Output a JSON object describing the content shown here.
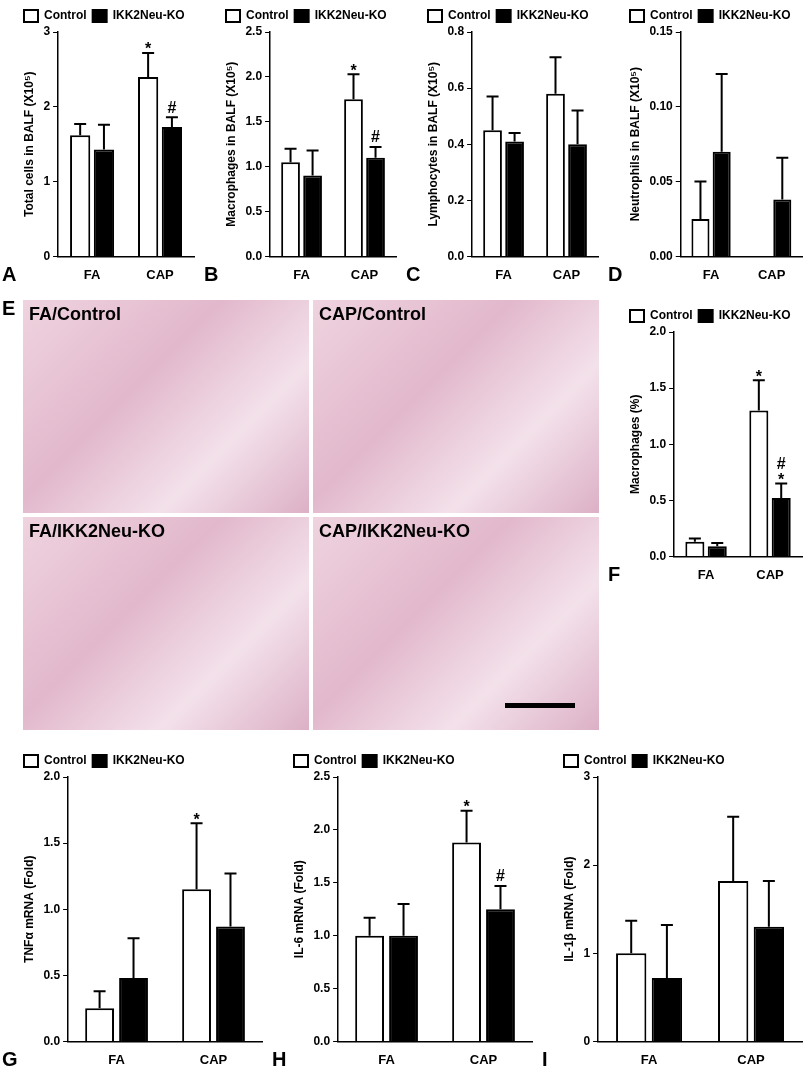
{
  "chart_data": [
    {
      "panel_label": "A",
      "type": "bar",
      "y_label": "Total cells in BALF (X10⁵)",
      "categories": [
        "FA",
        "CAP"
      ],
      "ylim": [
        0,
        3
      ],
      "yticks": [
        0,
        1,
        2,
        3
      ],
      "grid": false,
      "legend": "top-left",
      "series": [
        {
          "name": "Control",
          "color": "#ffffff",
          "values": [
            1.62,
            2.4
          ],
          "errors": [
            0.15,
            0.32
          ],
          "annotations": [
            null,
            [
              "*"
            ]
          ]
        },
        {
          "name": "IKK2Neu-KO",
          "color": "#000000",
          "values": [
            1.43,
            1.73
          ],
          "errors": [
            0.33,
            0.13
          ],
          "annotations": [
            null,
            [
              "#"
            ]
          ]
        }
      ]
    },
    {
      "panel_label": "B",
      "type": "bar",
      "y_label": "Macrophages in BALF (X10⁵)",
      "categories": [
        "FA",
        "CAP"
      ],
      "ylim": [
        0,
        2.5
      ],
      "yticks": [
        {
          "value": 0,
          "label": "0.0"
        },
        0.5,
        {
          "value": 1,
          "label": "1.0"
        },
        1.5,
        {
          "value": 2,
          "label": "2.0"
        },
        2.5
      ],
      "grid": false,
      "legend": "top-left",
      "series": [
        {
          "name": "Control",
          "color": "#ffffff",
          "values": [
            1.05,
            1.75
          ],
          "errors": [
            0.15,
            0.28
          ],
          "annotations": [
            null,
            [
              "*"
            ]
          ]
        },
        {
          "name": "IKK2Neu-KO",
          "color": "#000000",
          "values": [
            0.9,
            1.1
          ],
          "errors": [
            0.28,
            0.12
          ],
          "annotations": [
            null,
            [
              "#"
            ]
          ]
        }
      ]
    },
    {
      "panel_label": "C",
      "type": "bar",
      "y_label": "Lymphocytes in BALF (X10⁵)",
      "categories": [
        "FA",
        "CAP"
      ],
      "ylim": [
        0,
        0.8
      ],
      "yticks": [
        {
          "value": 0,
          "label": "0.0"
        },
        0.2,
        0.4,
        0.6,
        0.8
      ],
      "grid": false,
      "legend": "top-left",
      "series": [
        {
          "name": "Control",
          "color": "#ffffff",
          "values": [
            0.45,
            0.58
          ],
          "errors": [
            0.12,
            0.13
          ],
          "annotations": [
            null,
            null
          ]
        },
        {
          "name": "IKK2Neu-KO",
          "color": "#000000",
          "values": [
            0.41,
            0.4
          ],
          "errors": [
            0.03,
            0.12
          ],
          "annotations": [
            null,
            null
          ]
        }
      ]
    },
    {
      "panel_label": "D",
      "type": "bar",
      "y_label": "Neutrophils in BALF (X10⁵)",
      "categories": [
        "FA",
        "CAP"
      ],
      "ylim": [
        0,
        0.15
      ],
      "yticks": [
        {
          "value": 0,
          "label": "0.00"
        },
        {
          "value": 0.05,
          "label": "0.05"
        },
        {
          "value": 0.1,
          "label": "0.10"
        },
        {
          "value": 0.15,
          "label": "0.15"
        }
      ],
      "grid": false,
      "legend": "top-left",
      "series": [
        {
          "name": "Control",
          "color": "#ffffff",
          "values": [
            0.025,
            0
          ],
          "errors": [
            0.025,
            null
          ],
          "annotations": [
            null,
            null
          ]
        },
        {
          "name": "IKK2Neu-KO",
          "color": "#000000",
          "values": [
            0.07,
            0.038
          ],
          "errors": [
            0.052,
            0.028
          ],
          "annotations": [
            null,
            null
          ]
        }
      ]
    },
    {
      "panel_label": "F",
      "type": "bar",
      "y_label": "Macrophages (%)",
      "categories": [
        "FA",
        "CAP"
      ],
      "ylim": [
        0,
        2
      ],
      "yticks": [
        {
          "value": 0,
          "label": "0.0"
        },
        0.5,
        {
          "value": 1,
          "label": "1.0"
        },
        1.5,
        {
          "value": 2,
          "label": "2.0"
        }
      ],
      "grid": false,
      "legend": "top-left",
      "series": [
        {
          "name": "Control",
          "color": "#ffffff",
          "values": [
            0.13,
            1.3
          ],
          "errors": [
            0.03,
            0.27
          ],
          "annotations": [
            null,
            [
              "*"
            ]
          ]
        },
        {
          "name": "IKK2Neu-KO",
          "color": "#000000",
          "values": [
            0.09,
            0.52
          ],
          "errors": [
            0.03,
            0.13
          ],
          "annotations": [
            null,
            [
              "#",
              "*"
            ]
          ]
        }
      ]
    },
    {
      "panel_label": "G",
      "type": "bar",
      "y_label": "TNFα mRNA (Fold)",
      "categories": [
        "FA",
        "CAP"
      ],
      "ylim": [
        0,
        2
      ],
      "yticks": [
        {
          "value": 0,
          "label": "0.0"
        },
        0.5,
        {
          "value": 1,
          "label": "1.0"
        },
        1.5,
        {
          "value": 2,
          "label": "2.0"
        }
      ],
      "grid": false,
      "legend": "top-left",
      "series": [
        {
          "name": "Control",
          "color": "#ffffff",
          "values": [
            0.25,
            1.15
          ],
          "errors": [
            0.13,
            0.5
          ],
          "annotations": [
            null,
            [
              "*"
            ]
          ]
        },
        {
          "name": "IKK2Neu-KO",
          "color": "#000000",
          "values": [
            0.48,
            0.87
          ],
          "errors": [
            0.3,
            0.4
          ],
          "annotations": [
            null,
            null
          ]
        }
      ]
    },
    {
      "panel_label": "H",
      "type": "bar",
      "y_label": "IL-6 mRNA (Fold)",
      "categories": [
        "FA",
        "CAP"
      ],
      "ylim": [
        0,
        2.5
      ],
      "yticks": [
        {
          "value": 0,
          "label": "0.0"
        },
        0.5,
        {
          "value": 1,
          "label": "1.0"
        },
        1.5,
        {
          "value": 2,
          "label": "2.0"
        },
        2.5
      ],
      "grid": false,
      "legend": "top-left",
      "series": [
        {
          "name": "Control",
          "color": "#ffffff",
          "values": [
            1.0,
            1.88
          ],
          "errors": [
            0.17,
            0.3
          ],
          "annotations": [
            null,
            [
              "*"
            ]
          ]
        },
        {
          "name": "IKK2Neu-KO",
          "color": "#000000",
          "values": [
            1.0,
            1.25
          ],
          "errors": [
            0.3,
            0.22
          ],
          "annotations": [
            null,
            [
              "#"
            ]
          ]
        }
      ]
    },
    {
      "panel_label": "I",
      "type": "bar",
      "y_label": "IL-1β mRNA (Fold)",
      "categories": [
        "FA",
        "CAP"
      ],
      "ylim": [
        0,
        3
      ],
      "yticks": [
        0,
        1,
        2,
        3
      ],
      "grid": false,
      "legend": "top-left",
      "series": [
        {
          "name": "Control",
          "color": "#ffffff",
          "values": [
            1.0,
            1.82
          ],
          "errors": [
            0.37,
            0.73
          ],
          "annotations": [
            null,
            null
          ]
        },
        {
          "name": "IKK2Neu-KO",
          "color": "#000000",
          "values": [
            0.72,
            1.3
          ],
          "errors": [
            0.6,
            0.52
          ],
          "annotations": [
            null,
            null
          ]
        }
      ]
    }
  ],
  "image_panel": {
    "panel_label": "E",
    "images": [
      "FA/Control",
      "CAP/Control",
      "FA/IKK2Neu-KO",
      "CAP/IKK2Neu-KO"
    ]
  }
}
